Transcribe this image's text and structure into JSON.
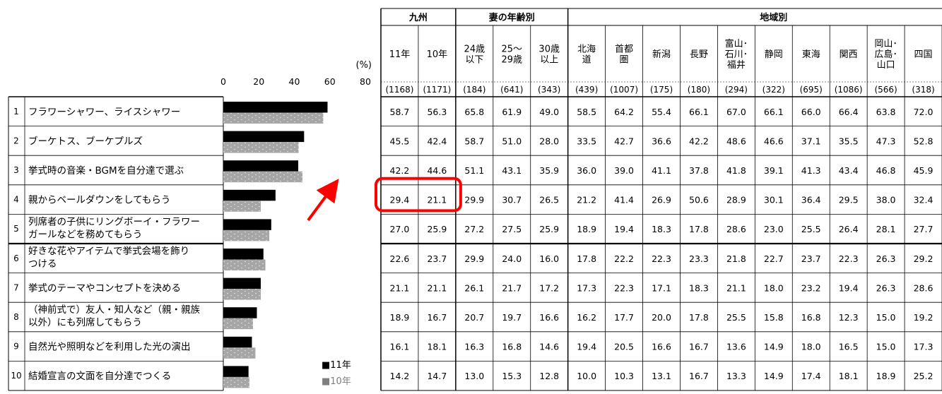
{
  "chart_data": {
    "type": "bar",
    "unit_label": "(%)",
    "x_ticks": [
      0,
      20,
      40,
      60,
      80
    ],
    "xlim": [
      0,
      80
    ],
    "legend": {
      "position": "bottom-right",
      "entries": [
        "■11年",
        "■10年"
      ]
    },
    "items": [
      {
        "no": "1",
        "label": [
          "フラワーシャワー、ライスシャワー"
        ]
      },
      {
        "no": "2",
        "label": [
          "ブーケトス、ブーケプルズ"
        ]
      },
      {
        "no": "3",
        "label": [
          "挙式時の音楽・BGMを自分達で選ぶ"
        ]
      },
      {
        "no": "4",
        "label": [
          "親からベールダウンをしてもらう"
        ]
      },
      {
        "no": "5",
        "label": [
          "列席者の子供にリングボーイ・フラワー",
          "ガールなどを務めてもらう"
        ]
      },
      {
        "no": "6",
        "label": [
          "好きな花やアイテムで挙式会場を飾り",
          "つける"
        ]
      },
      {
        "no": "7",
        "label": [
          "挙式のテーマやコンセプトを決める"
        ]
      },
      {
        "no": "8",
        "label": [
          "（神前式で）友人・知人など（親・親族",
          "以外）にも列席してもらう"
        ]
      },
      {
        "no": "9",
        "label": [
          "自然光や照明などを利用した光の演出"
        ]
      },
      {
        "no": "10",
        "label": [
          "結婚宣言の文面を自分達でつくる"
        ]
      }
    ],
    "series": [
      {
        "name": "11年",
        "color": "#000000",
        "values": [
          58.7,
          45.5,
          42.2,
          29.4,
          27.0,
          22.6,
          21.1,
          18.9,
          16.1,
          14.2
        ]
      },
      {
        "name": "10年",
        "color": "#a6a6a6",
        "values": [
          56.3,
          42.4,
          44.6,
          21.1,
          25.9,
          23.7,
          21.1,
          16.7,
          18.1,
          14.7
        ]
      }
    ]
  },
  "table": {
    "groups": [
      {
        "label": "九州",
        "span": 2
      },
      {
        "label": "妻の年齢別",
        "span": 3
      },
      {
        "label": "地域別",
        "span": 11
      }
    ],
    "columns": [
      {
        "label": [
          "11年"
        ],
        "n": "(1168)"
      },
      {
        "label": [
          "10年"
        ],
        "n": "(1171)"
      },
      {
        "label": [
          "24歳",
          "以下"
        ],
        "n": "(184)"
      },
      {
        "label": [
          "25～",
          "29歳"
        ],
        "n": "(641)"
      },
      {
        "label": [
          "30歳",
          "以上"
        ],
        "n": "(343)"
      },
      {
        "label": [
          "北海",
          "道"
        ],
        "n": "(439)"
      },
      {
        "label": [
          "首都",
          "圏"
        ],
        "n": "(1007)"
      },
      {
        "label": [
          "新潟"
        ],
        "n": "(175)"
      },
      {
        "label": [
          "長野"
        ],
        "n": "(180)"
      },
      {
        "label": [
          "富山･",
          "石川･",
          "福井"
        ],
        "n": "(294)"
      },
      {
        "label": [
          "静岡"
        ],
        "n": "(322)"
      },
      {
        "label": [
          "東海"
        ],
        "n": "(695)"
      },
      {
        "label": [
          "関西"
        ],
        "n": "(1086)"
      },
      {
        "label": [
          "岡山･",
          "広島･",
          "山口"
        ],
        "n": "(566)"
      },
      {
        "label": [
          "四国"
        ],
        "n": "(318)"
      }
    ],
    "rows": [
      [
        "58.7",
        "56.3",
        "65.8",
        "61.9",
        "49.0",
        "58.5",
        "64.2",
        "55.4",
        "66.1",
        "67.0",
        "66.1",
        "66.0",
        "66.4",
        "63.8",
        "72.0"
      ],
      [
        "45.5",
        "42.4",
        "58.7",
        "51.0",
        "28.0",
        "33.5",
        "42.7",
        "36.6",
        "42.2",
        "48.6",
        "46.6",
        "37.1",
        "35.5",
        "47.3",
        "52.8"
      ],
      [
        "42.2",
        "44.6",
        "51.1",
        "43.1",
        "35.9",
        "36.0",
        "39.0",
        "41.1",
        "37.8",
        "41.8",
        "39.1",
        "41.3",
        "43.4",
        "46.8",
        "45.9"
      ],
      [
        "29.4",
        "21.1",
        "29.9",
        "30.7",
        "26.5",
        "21.2",
        "41.4",
        "26.9",
        "50.6",
        "28.9",
        "30.1",
        "36.4",
        "29.5",
        "38.0",
        "32.4"
      ],
      [
        "27.0",
        "25.9",
        "27.2",
        "27.5",
        "25.9",
        "18.9",
        "19.4",
        "18.3",
        "17.8",
        "28.6",
        "23.0",
        "25.5",
        "26.4",
        "28.1",
        "27.7"
      ],
      [
        "22.6",
        "23.7",
        "29.9",
        "24.0",
        "16.0",
        "17.8",
        "22.2",
        "22.3",
        "23.3",
        "21.8",
        "22.7",
        "23.7",
        "22.3",
        "26.3",
        "29.2"
      ],
      [
        "21.1",
        "21.1",
        "26.1",
        "21.7",
        "17.2",
        "17.3",
        "22.3",
        "17.1",
        "18.3",
        "21.1",
        "18.0",
        "23.2",
        "19.4",
        "26.3",
        "28.6"
      ],
      [
        "18.9",
        "16.7",
        "20.7",
        "19.7",
        "16.6",
        "16.2",
        "17.7",
        "20.0",
        "17.8",
        "25.5",
        "15.8",
        "16.8",
        "12.3",
        "15.0",
        "19.2"
      ],
      [
        "16.1",
        "18.1",
        "16.3",
        "16.8",
        "14.6",
        "19.4",
        "20.5",
        "16.6",
        "16.7",
        "13.6",
        "14.9",
        "18.0",
        "16.5",
        "15.0",
        "17.3"
      ],
      [
        "14.2",
        "14.7",
        "13.0",
        "15.3",
        "12.8",
        "10.0",
        "10.3",
        "13.1",
        "16.7",
        "13.3",
        "14.9",
        "17.4",
        "18.1",
        "18.9",
        "25.2"
      ]
    ]
  },
  "highlight": {
    "row": 3,
    "cols": [
      0,
      1
    ],
    "color": "#ff0000"
  },
  "arrow_color": "#ff0000"
}
